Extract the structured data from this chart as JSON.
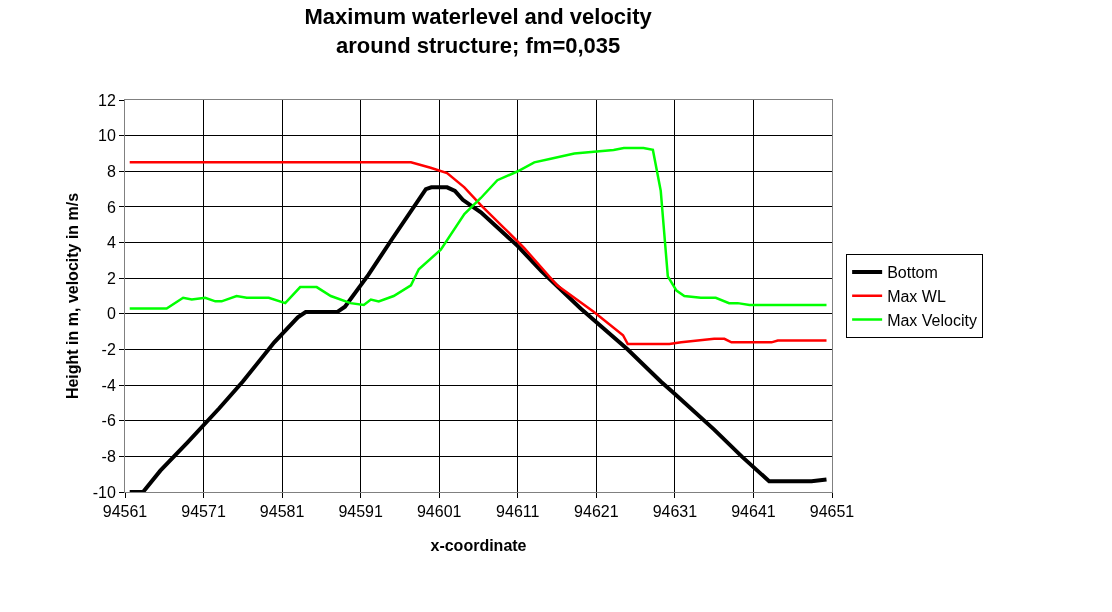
{
  "chart_data": {
    "type": "line",
    "title": "Maximum waterlevel and velocity\naround structure; fm=0,035",
    "xlabel": "x-coordinate",
    "ylabel": "Height in m, velocity in m/s",
    "xlim": [
      94561,
      94651
    ],
    "xticks": [
      94561,
      94571,
      94581,
      94591,
      94601,
      94611,
      94621,
      94631,
      94641,
      94651
    ],
    "ylim": [
      -10,
      12
    ],
    "yticks": [
      -10,
      -8,
      -6,
      -4,
      -2,
      0,
      2,
      4,
      6,
      8,
      10,
      12
    ],
    "grid": true,
    "legend": "right",
    "marker": "none",
    "line_style": "solid",
    "series": [
      {
        "name": "Bottom",
        "color": "#000000",
        "x": [
          94561.6,
          94563.3,
          94565.5,
          94569,
          94573,
          94576,
          94580,
          94583,
          94584,
          94588,
          94589,
          94592,
          94595,
          94599.3,
          94600,
          94602,
          94603,
          94604,
          94606.3,
          94611,
          94614,
          94619,
          94625,
          94629.2,
          94631,
          94636,
          94639.5,
          94643,
          94648.4,
          94650.3
        ],
        "values": [
          -10,
          -10,
          -8.8,
          -7.2,
          -5.3,
          -3.8,
          -1.6,
          -0.2,
          0.1,
          0.1,
          0.4,
          2.2,
          4.2,
          7.0,
          7.1,
          7.1,
          6.9,
          6.4,
          5.7,
          3.8,
          2.4,
          0.3,
          -2.0,
          -3.8,
          -4.5,
          -6.5,
          -8.0,
          -9.4,
          -9.4,
          -9.3
        ]
      },
      {
        "name": "Max WL",
        "color": "#ff0000",
        "x": [
          94561.6,
          94597.4,
          94599.9,
          94602,
          94604.2,
          94606.3,
          94609.3,
          94611.8,
          94616,
          94620.7,
          94624.4,
          94625,
          94630.3,
          94631.8,
          94636,
          94637.3,
          94638.2,
          94643.3,
          94644.1,
          94650.3
        ],
        "values": [
          8.5,
          8.5,
          8.2,
          7.9,
          7.1,
          6.1,
          4.8,
          3.7,
          1.6,
          0.1,
          -1.2,
          -1.7,
          -1.7,
          -1.6,
          -1.4,
          -1.4,
          -1.6,
          -1.6,
          -1.5,
          -1.5
        ]
      },
      {
        "name": "Max Velocity",
        "color": "#00ff00",
        "x": [
          94561.6,
          94566.3,
          94568.4,
          94569.5,
          94571.2,
          94572.5,
          94573.3,
          94575.2,
          94576.5,
          94579.3,
          94581.4,
          94583.3,
          94585.4,
          94587.2,
          94589.7,
          94591.4,
          94592.3,
          94593.3,
          94595.2,
          94597.4,
          94598.4,
          94601.2,
          94604.2,
          94606.3,
          94608.4,
          94611,
          94613.1,
          94615.2,
          94618.2,
          94623.2,
          94624.5,
          94627,
          94628.2,
          94629.2,
          94630.1,
          94631.2,
          94632.2,
          94634.3,
          94636.2,
          94637.9,
          94639,
          94640.5,
          94650.3
        ],
        "values": [
          0.3,
          0.3,
          0.9,
          0.8,
          0.9,
          0.7,
          0.7,
          1.0,
          0.9,
          0.9,
          0.6,
          1.5,
          1.5,
          1.0,
          0.6,
          0.5,
          0.8,
          0.7,
          1.0,
          1.6,
          2.5,
          3.6,
          5.6,
          6.5,
          7.5,
          8.0,
          8.5,
          8.7,
          9.0,
          9.2,
          9.3,
          9.3,
          9.2,
          6.9,
          2.1,
          1.3,
          1.0,
          0.9,
          0.9,
          0.6,
          0.6,
          0.5,
          0.5
        ]
      }
    ]
  }
}
